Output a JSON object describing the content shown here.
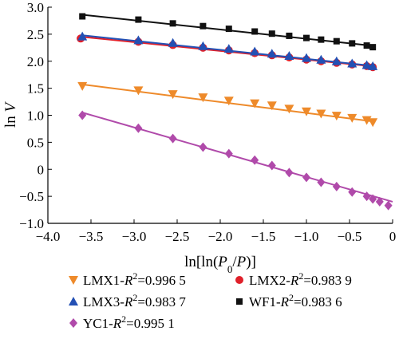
{
  "chart_data": {
    "type": "scatter",
    "title": "",
    "xlabel_parts": [
      {
        "t": "ln[ln(",
        "i": false,
        "sub": false
      },
      {
        "t": "P",
        "i": true,
        "sub": false
      },
      {
        "t": "0",
        "i": false,
        "sub": true
      },
      {
        "t": "/",
        "i": false,
        "sub": false
      },
      {
        "t": "P",
        "i": true,
        "sub": false
      },
      {
        "t": ")]",
        "i": false,
        "sub": false
      }
    ],
    "ylabel_parts": [
      {
        "t": "ln ",
        "i": false,
        "sub": false
      },
      {
        "t": "V",
        "i": true,
        "sub": false
      }
    ],
    "xlim": [
      -4.0,
      0
    ],
    "ylim": [
      -1.0,
      3.0
    ],
    "xticks": [
      -4.0,
      -3.5,
      -3.0,
      -2.5,
      -2.0,
      -1.5,
      -1.0,
      -0.5,
      0
    ],
    "xtick_labels": [
      "−4.0",
      "−3.5",
      "−3.0",
      "−2.5",
      "−2.0",
      "−1.5",
      "−1.0",
      "−0.5",
      "0"
    ],
    "yticks": [
      -1.0,
      -0.5,
      0,
      0.5,
      1.0,
      1.5,
      2.0,
      2.5,
      3.0
    ],
    "ytick_labels": [
      "−1.0",
      "−0.5",
      "0",
      "0.5",
      "1.0",
      "1.5",
      "2.0",
      "2.5",
      "3.0"
    ],
    "grid": false,
    "legend_position": "bottom",
    "series": [
      {
        "name": "LMX1",
        "r2_label": "=0.996 5",
        "color": "#ee8a2a",
        "marker": "triangle-down",
        "x": [
          -3.6,
          -2.95,
          -2.55,
          -2.2,
          -1.9,
          -1.6,
          -1.4,
          -1.2,
          -1.0,
          -0.83,
          -0.65,
          -0.47,
          -0.3,
          -0.23
        ],
        "y": [
          1.54,
          1.46,
          1.39,
          1.33,
          1.27,
          1.22,
          1.18,
          1.12,
          1.07,
          1.03,
          0.99,
          0.95,
          0.91,
          0.87
        ],
        "fit": [
          [
            -3.6,
            1.57
          ],
          [
            -0.2,
            0.88
          ]
        ]
      },
      {
        "name": "LMX2",
        "r2_label": "=0.983 9",
        "color": "#e0202a",
        "marker": "circle",
        "x": [
          -3.62,
          -2.95,
          -2.55,
          -2.2,
          -1.9,
          -1.6,
          -1.4,
          -1.2,
          -1.0,
          -0.83,
          -0.65,
          -0.47,
          -0.3,
          -0.23
        ],
        "y": [
          2.42,
          2.36,
          2.3,
          2.25,
          2.2,
          2.15,
          2.11,
          2.07,
          2.03,
          2.0,
          1.97,
          1.94,
          1.91,
          1.89
        ],
        "fit": [
          [
            -3.6,
            2.45
          ],
          [
            -0.2,
            1.9
          ]
        ]
      },
      {
        "name": "LMX3",
        "r2_label": "=0.983 7",
        "color": "#2350b4",
        "marker": "triangle-up",
        "x": [
          -3.6,
          -2.95,
          -2.55,
          -2.2,
          -1.9,
          -1.6,
          -1.4,
          -1.2,
          -1.0,
          -0.83,
          -0.65,
          -0.47,
          -0.3,
          -0.23
        ],
        "y": [
          2.46,
          2.39,
          2.34,
          2.28,
          2.23,
          2.18,
          2.14,
          2.1,
          2.06,
          2.03,
          2.0,
          1.96,
          1.93,
          1.91
        ],
        "fit": [
          [
            -3.6,
            2.48
          ],
          [
            -0.2,
            1.91
          ]
        ]
      },
      {
        "name": "WF1",
        "r2_label": "=0.983 6",
        "color": "#111111",
        "marker": "square",
        "x": [
          -3.6,
          -2.95,
          -2.55,
          -2.2,
          -1.9,
          -1.6,
          -1.4,
          -1.2,
          -1.0,
          -0.83,
          -0.65,
          -0.47,
          -0.3,
          -0.23
        ],
        "y": [
          2.83,
          2.77,
          2.7,
          2.65,
          2.6,
          2.55,
          2.51,
          2.47,
          2.43,
          2.4,
          2.37,
          2.33,
          2.29,
          2.26
        ],
        "fit": [
          [
            -3.6,
            2.86
          ],
          [
            -0.2,
            2.28
          ]
        ]
      },
      {
        "name": "YC1",
        "r2_label": "=0.995 1",
        "color": "#b04aaa",
        "marker": "diamond",
        "x": [
          -3.6,
          -2.95,
          -2.55,
          -2.2,
          -1.9,
          -1.6,
          -1.4,
          -1.2,
          -1.0,
          -0.83,
          -0.65,
          -0.47,
          -0.3,
          -0.23,
          -0.15,
          -0.05
        ],
        "y": [
          1.0,
          0.76,
          0.57,
          0.41,
          0.29,
          0.17,
          0.07,
          -0.06,
          -0.15,
          -0.24,
          -0.32,
          -0.42,
          -0.5,
          -0.55,
          -0.6,
          -0.67
        ],
        "fit": [
          [
            -3.6,
            1.05
          ],
          [
            0,
            -0.6
          ]
        ]
      }
    ]
  },
  "legend": {
    "r2_prefix": "-R",
    "r2_sup": "2",
    "items": [
      {
        "series": "LMX1",
        "text": "LMX1",
        "value": "=0.996 5"
      },
      {
        "series": "LMX2",
        "text": "LMX2",
        "value": "=0.983 9"
      },
      {
        "series": "LMX3",
        "text": "LMX3",
        "value": "=0.983 7"
      },
      {
        "series": "WF1",
        "text": "WF1",
        "value": "=0.983 6"
      },
      {
        "series": "YC1",
        "text": "YC1",
        "value": "=0.995 1"
      }
    ]
  }
}
